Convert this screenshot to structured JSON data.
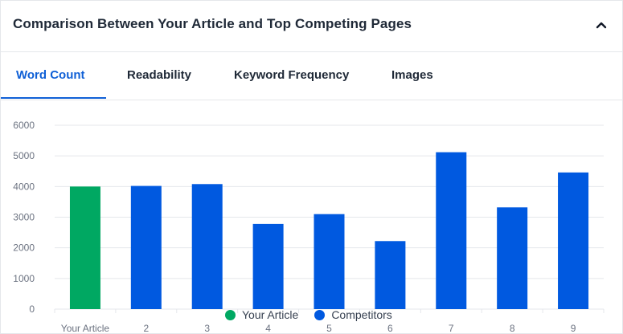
{
  "header": {
    "title": "Comparison Between Your Article and Top Competing Pages"
  },
  "tabs": [
    {
      "label": "Word Count",
      "active": true
    },
    {
      "label": "Readability",
      "active": false
    },
    {
      "label": "Keyword Frequency",
      "active": false
    },
    {
      "label": "Images",
      "active": false
    }
  ],
  "colors": {
    "accent": "#1060d6",
    "your_article": "#00a862",
    "competitors": "#0059e0"
  },
  "chart_data": {
    "type": "bar",
    "categories": [
      "Your Article",
      "2",
      "3",
      "4",
      "5",
      "6",
      "7",
      "8",
      "9"
    ],
    "values": [
      4000,
      4020,
      4080,
      2780,
      3100,
      2220,
      5120,
      3320,
      4460
    ],
    "ylim": [
      0,
      6000
    ],
    "yticks": [
      0,
      1000,
      2000,
      3000,
      4000,
      5000,
      6000
    ],
    "grid": true,
    "legend_position": "bottom",
    "series": [
      {
        "name": "Your Article",
        "color": "#00a862"
      },
      {
        "name": "Competitors",
        "color": "#0059e0"
      }
    ]
  }
}
